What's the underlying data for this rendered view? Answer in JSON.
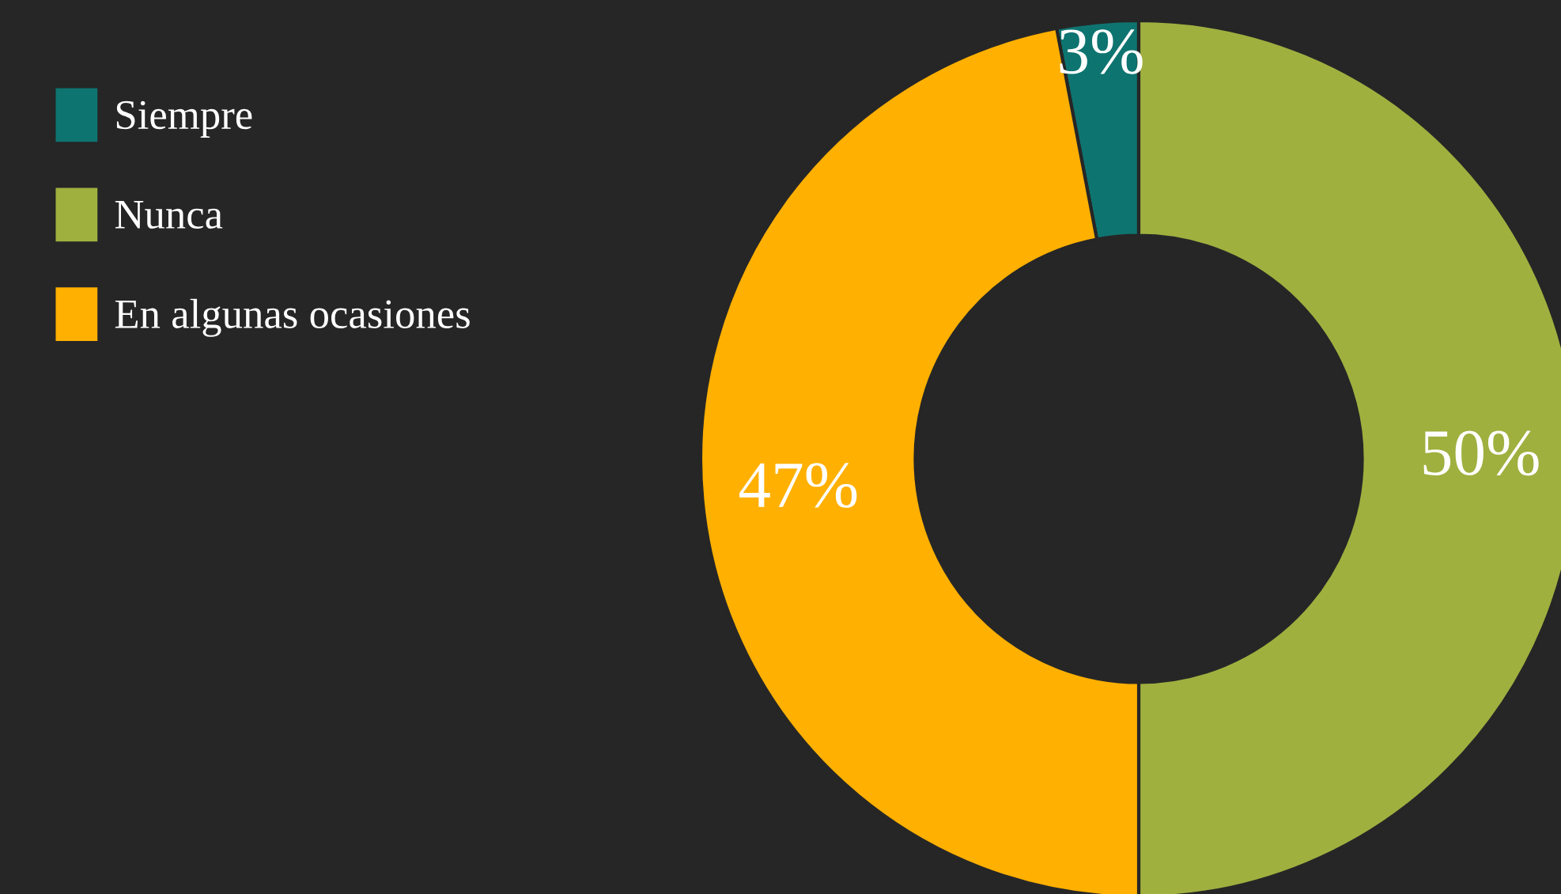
{
  "chart_data": {
    "type": "donut",
    "categories": [
      "Siempre",
      "Nunca",
      "En algunas ocasiones"
    ],
    "values": [
      3,
      50,
      47
    ],
    "colors": [
      "#0e7470",
      "#9fb03f",
      "#ffb000"
    ],
    "value_labels": [
      "3%",
      "50%",
      "47%"
    ],
    "legend": "top left"
  }
}
